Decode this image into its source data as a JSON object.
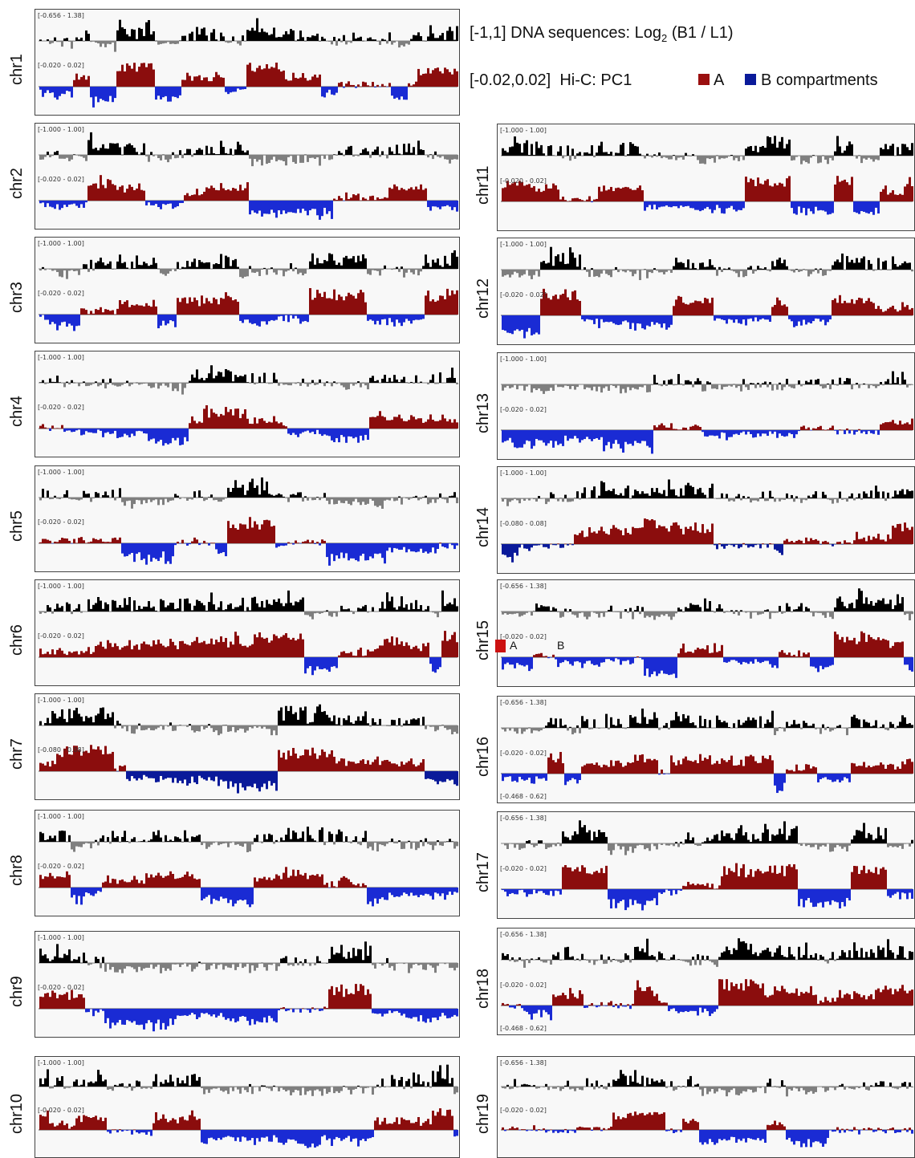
{
  "legend": {
    "dna_range": "[-1,1]",
    "dna_label_prefix": "DNA sequences: Log",
    "dna_label_sub": "2",
    "dna_label_suffix": " (B1 / L1)",
    "hic_range": "[-0.02,0.02]",
    "hic_label": "Hi-C: PC1",
    "a_label": "A",
    "b_label": "B compartments",
    "a_color": "#9b1010",
    "b_color": "#0a1a9a"
  },
  "chr15_inset": {
    "a_label": "A",
    "b_label": "B",
    "a_color": "#cc1111"
  },
  "chart_data": {
    "type": "bar",
    "series_colors": {
      "dna_positive": "#000000",
      "dna_negative": "#7f7f7f",
      "hic_a": "#8b0d0d",
      "hic_b_default": "#1a2bd4",
      "hic_b_dark": "#0a1a9a"
    },
    "panels": [
      {
        "chr": "chr1",
        "dna_range": "[-0.656 - 1.38]",
        "hic_range": "[-0.020 - 0.02]",
        "bottom_range": ""
      },
      {
        "chr": "chr2",
        "dna_range": "[-1.000 - 1.00]",
        "hic_range": "[-0.020 - 0.02]",
        "bottom_range": ""
      },
      {
        "chr": "chr3",
        "dna_range": "[-1.000 - 1.00]",
        "hic_range": "[-0.020 - 0.02]",
        "bottom_range": ""
      },
      {
        "chr": "chr4",
        "dna_range": "[-1.000 - 1.00]",
        "hic_range": "[-0.020 - 0.02]",
        "bottom_range": ""
      },
      {
        "chr": "chr5",
        "dna_range": "[-1.000 - 1.00]",
        "hic_range": "[-0.020 - 0.02]",
        "bottom_range": ""
      },
      {
        "chr": "chr6",
        "dna_range": "[-1.000 - 1.00]",
        "hic_range": "[-0.020 - 0.02]",
        "bottom_range": ""
      },
      {
        "chr": "chr7",
        "dna_range": "[-1.000 - 1.00]",
        "hic_range": "[-0.080 - 0.08]",
        "bottom_range": ""
      },
      {
        "chr": "chr8",
        "dna_range": "[-1.000 - 1.00]",
        "hic_range": "[-0.020 - 0.02]",
        "bottom_range": ""
      },
      {
        "chr": "chr9",
        "dna_range": "[-1.000 - 1.00]",
        "hic_range": "[-0.020 - 0.02]",
        "bottom_range": ""
      },
      {
        "chr": "chr10",
        "dna_range": "[-1.000 - 1.00]",
        "hic_range": "[-0.020 - 0.02]",
        "bottom_range": ""
      },
      {
        "chr": "chr11",
        "dna_range": "[-1.000 - 1.00]",
        "hic_range": "[-0.020 - 0.02]",
        "bottom_range": ""
      },
      {
        "chr": "chr12",
        "dna_range": "[-1.000 - 1.00]",
        "hic_range": "[-0.020 - 0.02]",
        "bottom_range": ""
      },
      {
        "chr": "chr13",
        "dna_range": "[-1.000 - 1.00]",
        "hic_range": "[-0.020 - 0.02]",
        "bottom_range": ""
      },
      {
        "chr": "chr14",
        "dna_range": "[-1.000 - 1.00]",
        "hic_range": "[-0.080 - 0.08]",
        "bottom_range": ""
      },
      {
        "chr": "chr15",
        "dna_range": "[-0.656 - 1.38]",
        "hic_range": "[-0.020 - 0.02]",
        "bottom_range": ""
      },
      {
        "chr": "chr16",
        "dna_range": "[-0.656 - 1.38]",
        "hic_range": "[-0.020 - 0.02]",
        "bottom_range": "[-0.468 - 0.62]"
      },
      {
        "chr": "chr17",
        "dna_range": "[-0.656 - 1.38]",
        "hic_range": "[-0.020 - 0.02]",
        "bottom_range": ""
      },
      {
        "chr": "chr18",
        "dna_range": "[-0.656 - 1.38]",
        "hic_range": "[-0.020 - 0.02]",
        "bottom_range": "[-0.468 - 0.62]"
      },
      {
        "chr": "chr19",
        "dna_range": "[-0.656 - 1.38]",
        "hic_range": "[-0.020 - 0.02]",
        "bottom_range": ""
      }
    ]
  }
}
